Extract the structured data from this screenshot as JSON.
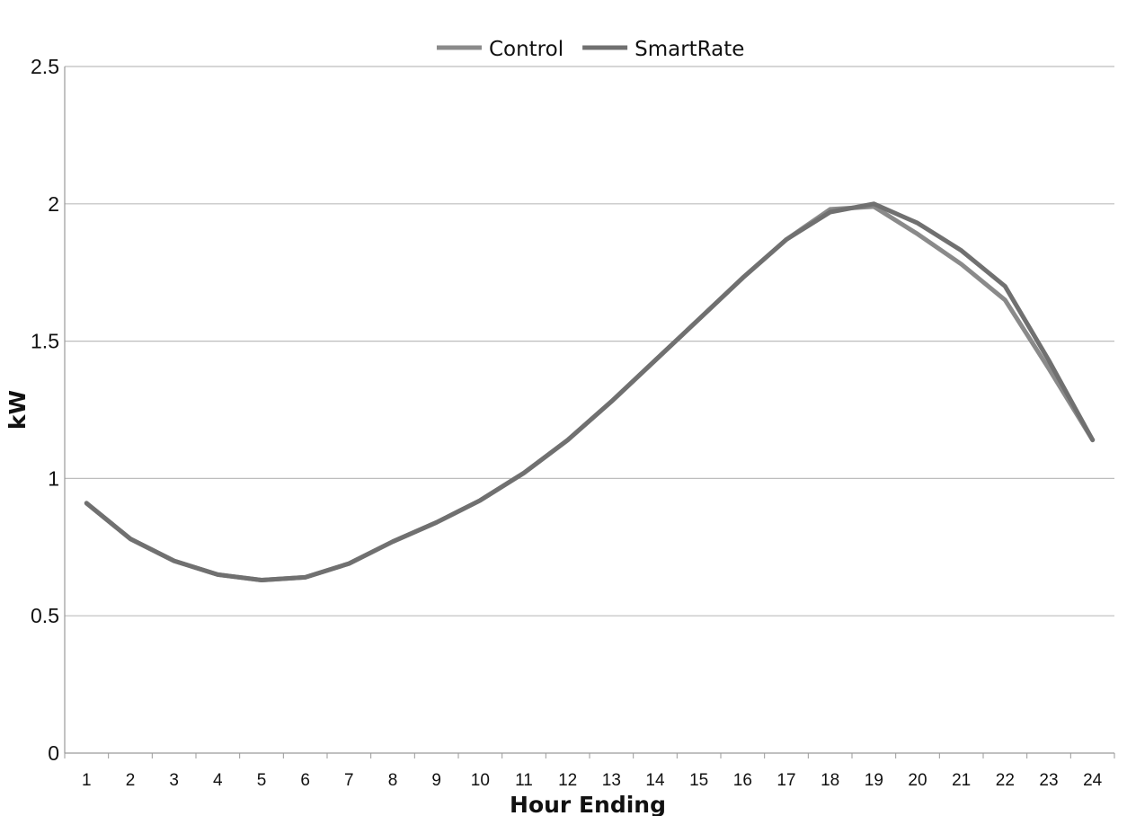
{
  "chart_data": {
    "type": "line",
    "title": "",
    "xlabel": "Hour Ending",
    "ylabel": "kW",
    "categories": [
      "1",
      "2",
      "3",
      "4",
      "5",
      "6",
      "7",
      "8",
      "9",
      "10",
      "11",
      "12",
      "13",
      "14",
      "15",
      "16",
      "17",
      "18",
      "19",
      "20",
      "21",
      "22",
      "23",
      "24"
    ],
    "yticks": [
      "0",
      "0.5",
      "1",
      "1.5",
      "2",
      "2.5"
    ],
    "ylim": [
      0,
      2.5
    ],
    "grid": true,
    "legend_position": "top-center",
    "series": [
      {
        "name": "Control",
        "color": "#8a8a8a",
        "values": [
          0.91,
          0.78,
          0.7,
          0.65,
          0.63,
          0.64,
          0.69,
          0.77,
          0.84,
          0.92,
          1.02,
          1.14,
          1.28,
          1.43,
          1.58,
          1.73,
          1.87,
          1.98,
          1.99,
          1.89,
          1.78,
          1.65,
          1.4,
          1.14
        ]
      },
      {
        "name": "SmartRate",
        "color": "#707070",
        "values": [
          0.91,
          0.78,
          0.7,
          0.65,
          0.63,
          0.64,
          0.69,
          0.77,
          0.84,
          0.92,
          1.02,
          1.14,
          1.28,
          1.43,
          1.58,
          1.73,
          1.87,
          1.97,
          2.0,
          1.93,
          1.83,
          1.7,
          1.43,
          1.14
        ]
      }
    ]
  }
}
